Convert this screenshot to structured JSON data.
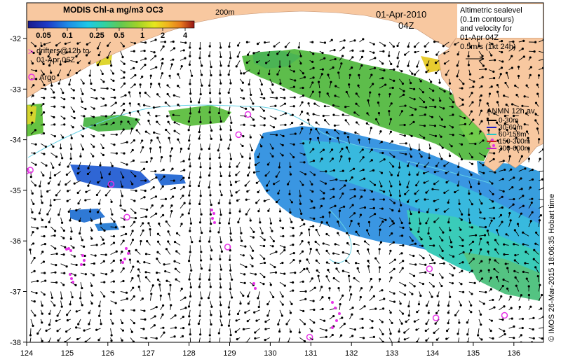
{
  "colorbar": {
    "title": "MODIS Chl-a mg/m3 OC3",
    "ticks": [
      "0.05",
      "0.1",
      "0.25",
      "0.5",
      "1",
      "2",
      "4"
    ],
    "colors": [
      "#1a1a8c",
      "#1e3cc8",
      "#1e8ce6",
      "#1ec8e6",
      "#32d2a0",
      "#64c850",
      "#a0d228",
      "#e6e61e",
      "#f0b41e",
      "#e6781e",
      "#c83214",
      "#961414"
    ]
  },
  "labels": {
    "isobath": "200m",
    "date": "01-Apr-2010",
    "hour": "04Z",
    "drifters": [
      "drifters@12h to",
      "01-Apr 06Z"
    ],
    "argo": "Argo",
    "altimetry": [
      "Altimetric sealevel",
      "(0.1m contours)",
      "and velocity for",
      "01-Apr 04Z",
      "0.5m/s (1kt 24h)"
    ],
    "credit": "© IMOS 26-Mar-2015 18:06:35 Hobart time"
  },
  "anmn": {
    "title": "ANMN 12h av.",
    "items": [
      {
        "label": "0-30m",
        "color": "#000000"
      },
      {
        "label": "30-60m",
        "color": "#1e1ec8"
      },
      {
        "label": "60-150m",
        "color": "#1ec8c8"
      },
      {
        "label": "150-300m",
        "color": "#c81e1e"
      },
      {
        "label": "300-600m",
        "color": "#c81ec8"
      }
    ]
  },
  "axes": {
    "x_ticks": [
      "124",
      "125",
      "126",
      "127",
      "128",
      "129",
      "130",
      "131",
      "132",
      "133",
      "134",
      "135",
      "136"
    ],
    "y_ticks": [
      "-32",
      "-33",
      "-34",
      "-35",
      "-36",
      "-37",
      "-38"
    ]
  },
  "colors": {
    "land": "#f8c8a0",
    "argo": "#e632e6",
    "contour": "#64d2e6"
  },
  "argo_floats": [
    {
      "lon": 123.99,
      "lat": -34.62
    },
    {
      "lon": 124.09,
      "lat": -34.6
    },
    {
      "lon": 126.08,
      "lat": -34.88
    },
    {
      "lon": 126.47,
      "lat": -35.53
    },
    {
      "lon": 128.95,
      "lat": -36.12
    },
    {
      "lon": 129.22,
      "lat": -33.9
    },
    {
      "lon": 129.45,
      "lat": -33.5
    },
    {
      "lon": 130.97,
      "lat": -37.9
    },
    {
      "lon": 133.92,
      "lat": -36.55
    },
    {
      "lon": 134.08,
      "lat": -37.52
    },
    {
      "lon": 135.77,
      "lat": -37.47
    }
  ]
}
